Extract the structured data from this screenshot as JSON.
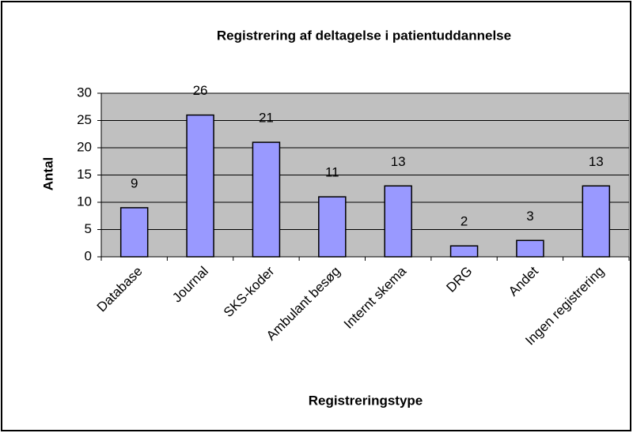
{
  "chart_data": {
    "type": "bar",
    "title": "Registrering af deltagelse i patientuddannelse",
    "x_label": "Registreringstype",
    "y_label": "Antal",
    "categories": [
      "Database",
      "Journal",
      "SKS-koder",
      "Ambulant besøg",
      "Internt skema",
      "DRG",
      "Andet",
      "Ingen registrering"
    ],
    "values": [
      9,
      26,
      21,
      11,
      13,
      2,
      3,
      13
    ],
    "color": "#9999ff",
    "plot_background": "#c0c0c0",
    "ylim": [
      0,
      30
    ],
    "yticks": [
      0,
      5,
      10,
      15,
      20,
      25,
      30
    ],
    "grid": true
  }
}
